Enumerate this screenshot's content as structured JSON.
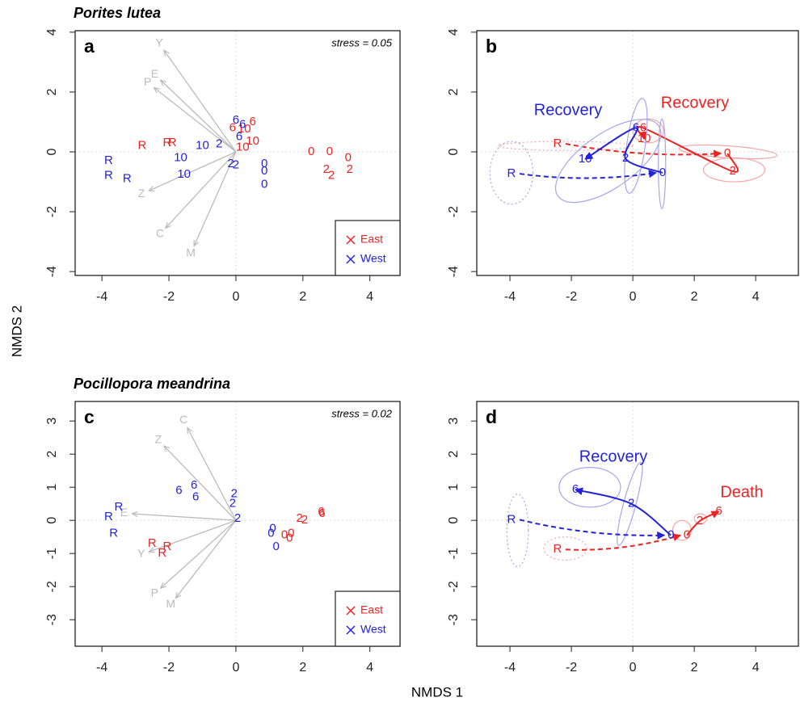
{
  "xlabel": "NMDS 1",
  "ylabel": "NMDS 2",
  "chart_data": [
    {
      "type": "scatter",
      "letter": "a",
      "title": "Porites lutea",
      "stress": "stress = 0.05",
      "xlim": [
        -4.8,
        4.9
      ],
      "ylim": [
        -4.13,
        4.05
      ],
      "xticks": [
        -4,
        -2,
        0,
        2,
        4
      ],
      "yticks": [
        -4,
        -2,
        0,
        2,
        4
      ],
      "zero_lines": true,
      "legend": "lower right",
      "vectors": {
        "color": "#bbbbbb",
        "labels": [
          "Y",
          "E",
          "P",
          "Z",
          "C",
          "M"
        ],
        "x": [
          -2.15,
          -2.25,
          -2.45,
          -2.6,
          -2.1,
          -1.25
        ],
        "y": [
          3.4,
          2.4,
          2.15,
          -1.3,
          -2.55,
          -3.15
        ]
      },
      "series": [
        {
          "name": "East",
          "color": "#ee2222",
          "labels": [
            "R",
            "R",
            "R",
            "6",
            "10",
            "6",
            "10",
            "10",
            "0",
            "0",
            "0",
            "2",
            "2",
            "2"
          ],
          "x": [
            -2.8,
            -2.05,
            -1.9,
            -0.1,
            0.25,
            0.5,
            0.5,
            0.2,
            2.25,
            2.8,
            3.35,
            2.7,
            2.85,
            3.4
          ],
          "y": [
            0.2,
            0.3,
            0.3,
            0.8,
            0.75,
            1.0,
            0.35,
            0.15,
            0.0,
            0.0,
            -0.2,
            -0.6,
            -0.8,
            -0.6
          ]
        },
        {
          "name": "West",
          "color": "#2222dd",
          "labels": [
            "R",
            "R",
            "R",
            "10",
            "10",
            "10",
            "2",
            "6",
            "6",
            "6",
            "2",
            "2",
            "0",
            "0",
            "0"
          ],
          "x": [
            -3.8,
            -3.8,
            -3.25,
            -1.65,
            -1.55,
            -1.0,
            -0.5,
            0,
            0.2,
            0.1,
            -0.15,
            0,
            0.85,
            0.85,
            0.85
          ],
          "y": [
            -0.3,
            -0.8,
            -0.9,
            -0.2,
            -0.75,
            0.2,
            0.25,
            1.05,
            0.9,
            0.5,
            -0.4,
            -0.45,
            -0.4,
            -0.65,
            -1.1
          ]
        }
      ]
    },
    {
      "type": "trajectory",
      "letter": "b",
      "xlim": [
        -5.08,
        5.39
      ],
      "ylim": [
        -4.13,
        4.05
      ],
      "xticks": [
        -4,
        -2,
        0,
        2,
        4
      ],
      "yticks": [
        -4,
        -2,
        0,
        2,
        4
      ],
      "zero_lines": true,
      "annotations": [
        {
          "text": "Recovery",
          "color": "#2222dd"
        },
        {
          "text": "Recovery",
          "color": "#ee2222"
        }
      ],
      "series": [
        {
          "name": "East",
          "color": "#ee2222",
          "ellipse_color": "#f4a6a6",
          "labels": [
            "R",
            "0",
            "2",
            "6",
            "10"
          ],
          "x": [
            -2.45,
            3.08,
            3.25,
            0.34,
            0.37
          ],
          "y": [
            0.27,
            -0.05,
            -0.65,
            0.8,
            0.43
          ],
          "ellipses": [
            {
              "x": -2.2,
              "y": 0.2,
              "rx": 2.2,
              "ry": 0.15,
              "angle": 0,
              "style": "dotted"
            },
            {
              "x": 3.1,
              "y": 0.0,
              "rx": 1.6,
              "ry": 0.2,
              "angle": -4,
              "style": "solid"
            },
            {
              "x": 3.3,
              "y": -0.6,
              "rx": 1.0,
              "ry": 0.4,
              "angle": 0,
              "style": "solid"
            },
            {
              "x": 0.5,
              "y": 0.7,
              "rx": 0.5,
              "ry": 0.4,
              "angle": 0,
              "style": "solid"
            }
          ]
        },
        {
          "name": "West",
          "color": "#2222dd",
          "ellipse_color": "#a6a6ee",
          "labels": [
            "R",
            "0",
            "2",
            "6",
            "10"
          ],
          "x": [
            -3.95,
            0.97,
            -0.24,
            0.1,
            -1.55
          ],
          "y": [
            -0.73,
            -0.7,
            -0.22,
            0.8,
            -0.24
          ],
          "ellipses": [
            {
              "x": -3.95,
              "y": -0.7,
              "rx": 0.7,
              "ry": 1.05,
              "angle": 0,
              "style": "dotted"
            },
            {
              "x": -0.8,
              "y": -0.3,
              "rx": 2.0,
              "ry": 0.9,
              "angle": 35,
              "style": "solid"
            },
            {
              "x": 0.95,
              "y": -0.4,
              "rx": 0.12,
              "ry": 1.5,
              "angle": 0,
              "style": "solid"
            },
            {
              "x": 0.1,
              "y": 0.2,
              "rx": 0.3,
              "ry": 1.6,
              "angle": -8,
              "style": "solid"
            }
          ]
        }
      ]
    },
    {
      "type": "scatter",
      "letter": "c",
      "title": "Pocillopora meandrina",
      "stress": "stress = 0.02",
      "xlim": [
        -4.8,
        4.9
      ],
      "ylim": [
        -3.8,
        3.59
      ],
      "xticks": [
        -4,
        -2,
        0,
        2,
        4
      ],
      "yticks": [
        -3,
        -2,
        -1,
        0,
        1,
        2,
        3
      ],
      "zero_lines": true,
      "legend": "lower right",
      "vectors": {
        "color": "#bbbbbb",
        "labels": [
          "C",
          "Z",
          "E",
          "Y",
          "P",
          "M"
        ],
        "x": [
          -1.45,
          -2.15,
          -3.1,
          -2.6,
          -2.25,
          -1.8
        ],
        "y": [
          2.8,
          2.25,
          0.2,
          -0.95,
          -2.05,
          -2.35
        ]
      },
      "series": [
        {
          "name": "East",
          "color": "#ee2222",
          "labels": [
            "R",
            "R",
            "R",
            "0",
            "0",
            "0",
            "2",
            "2",
            "6",
            "6"
          ],
          "x": [
            -2.5,
            -2.2,
            -2.05,
            1.45,
            1.6,
            1.65,
            1.9,
            2.05,
            2.55,
            2.57
          ],
          "y": [
            -0.7,
            -1.0,
            -0.8,
            -0.45,
            -0.55,
            -0.4,
            0.05,
            0,
            0.25,
            0.2
          ]
        },
        {
          "name": "West",
          "color": "#2222dd",
          "labels": [
            "R",
            "R",
            "R",
            "6",
            "6",
            "6",
            "2",
            "2",
            "2",
            "0",
            "0",
            "0"
          ],
          "x": [
            -3.5,
            -3.8,
            -3.65,
            -1.7,
            -1.25,
            -1.2,
            -0.05,
            -0.1,
            0.05,
            1.1,
            1.05,
            1.2
          ],
          "y": [
            0.4,
            0.1,
            -0.4,
            0.9,
            1.05,
            0.7,
            0.8,
            0.5,
            0.05,
            -0.25,
            -0.4,
            -0.8
          ]
        }
      ]
    },
    {
      "type": "trajectory",
      "letter": "d",
      "xlim": [
        -5.08,
        5.39
      ],
      "ylim": [
        -3.8,
        3.59
      ],
      "xticks": [
        -4,
        -2,
        0,
        2,
        4
      ],
      "yticks": [
        -3,
        -2,
        -1,
        0,
        1,
        2,
        3
      ],
      "zero_lines": true,
      "annotations": [
        {
          "text": "Recovery",
          "color": "#2222dd"
        },
        {
          "text": "Death",
          "color": "#ee2222"
        }
      ],
      "series": [
        {
          "name": "East",
          "color": "#ee2222",
          "ellipse_color": "#f4a6a6",
          "labels": [
            "R",
            "0",
            "2",
            "6"
          ],
          "x": [
            -2.45,
            1.76,
            2.18,
            2.8
          ],
          "y": [
            -0.88,
            -0.45,
            -0.02,
            0.27
          ],
          "ellipses": [
            {
              "x": -2.2,
              "y": -0.85,
              "rx": 0.7,
              "ry": 0.35,
              "angle": 0,
              "style": "dotted"
            },
            {
              "x": 1.6,
              "y": -0.3,
              "rx": 0.3,
              "ry": 0.3,
              "angle": 0,
              "style": "solid"
            },
            {
              "x": 2.2,
              "y": 0.05,
              "rx": 0.2,
              "ry": 0.15,
              "angle": 0,
              "style": "solid"
            }
          ]
        },
        {
          "name": "West",
          "color": "#2222dd",
          "ellipse_color": "#a6a6ee",
          "labels": [
            "R",
            "0",
            "2",
            "6"
          ],
          "x": [
            -3.95,
            1.24,
            -0.05,
            -1.87
          ],
          "y": [
            0.02,
            -0.45,
            0.5,
            0.93
          ],
          "ellipses": [
            {
              "x": -3.75,
              "y": -0.3,
              "rx": 0.35,
              "ry": 1.1,
              "angle": 0,
              "style": "dotted"
            },
            {
              "x": -1.4,
              "y": 1.0,
              "rx": 1.0,
              "ry": 0.6,
              "angle": 0,
              "style": "solid"
            },
            {
              "x": -0.1,
              "y": 0.5,
              "rx": 0.2,
              "ry": 1.3,
              "angle": -15,
              "style": "solid"
            }
          ]
        }
      ]
    }
  ]
}
